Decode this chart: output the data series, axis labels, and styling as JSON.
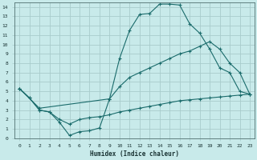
{
  "xlabel": "Humidex (Indice chaleur)",
  "bg_color": "#c8eaea",
  "grid_color": "#a8cccc",
  "line_color": "#1a6b6b",
  "xlim": [
    -0.5,
    23.5
  ],
  "ylim": [
    0,
    14.5
  ],
  "xticks": [
    0,
    1,
    2,
    3,
    4,
    5,
    6,
    7,
    8,
    9,
    10,
    11,
    12,
    13,
    14,
    15,
    16,
    17,
    18,
    19,
    20,
    21,
    22,
    23
  ],
  "yticks": [
    0,
    1,
    2,
    3,
    4,
    5,
    6,
    7,
    8,
    9,
    10,
    11,
    12,
    13,
    14
  ],
  "curve1_x": [
    0,
    1,
    2,
    3,
    4,
    5,
    6,
    7,
    8,
    9,
    10,
    11,
    12,
    13,
    14,
    15,
    16,
    17,
    18,
    19,
    20,
    21,
    22,
    23
  ],
  "curve1_y": [
    5.3,
    4.3,
    3.0,
    2.8,
    1.7,
    0.3,
    0.7,
    0.8,
    1.1,
    4.2,
    8.5,
    11.5,
    13.2,
    13.3,
    14.3,
    14.3,
    14.2,
    12.2,
    11.2,
    9.5,
    7.5,
    7.0,
    5.0,
    4.7
  ],
  "curve2_x": [
    0,
    2,
    9,
    10,
    11,
    12,
    13,
    14,
    15,
    16,
    17,
    18,
    19,
    20,
    21,
    22,
    23
  ],
  "curve2_y": [
    5.3,
    3.2,
    4.2,
    5.5,
    6.5,
    7.0,
    7.5,
    8.0,
    8.5,
    9.0,
    9.3,
    9.8,
    10.3,
    9.5,
    8.0,
    7.0,
    4.7
  ],
  "curve3_x": [
    0,
    1,
    2,
    3,
    4,
    5,
    6,
    7,
    8,
    9,
    10,
    11,
    12,
    13,
    14,
    15,
    16,
    17,
    18,
    19,
    20,
    21,
    22,
    23
  ],
  "curve3_y": [
    5.3,
    4.3,
    3.0,
    2.8,
    2.0,
    1.5,
    2.0,
    2.2,
    2.3,
    2.5,
    2.8,
    3.0,
    3.2,
    3.4,
    3.6,
    3.8,
    4.0,
    4.1,
    4.2,
    4.3,
    4.4,
    4.5,
    4.6,
    4.7
  ]
}
